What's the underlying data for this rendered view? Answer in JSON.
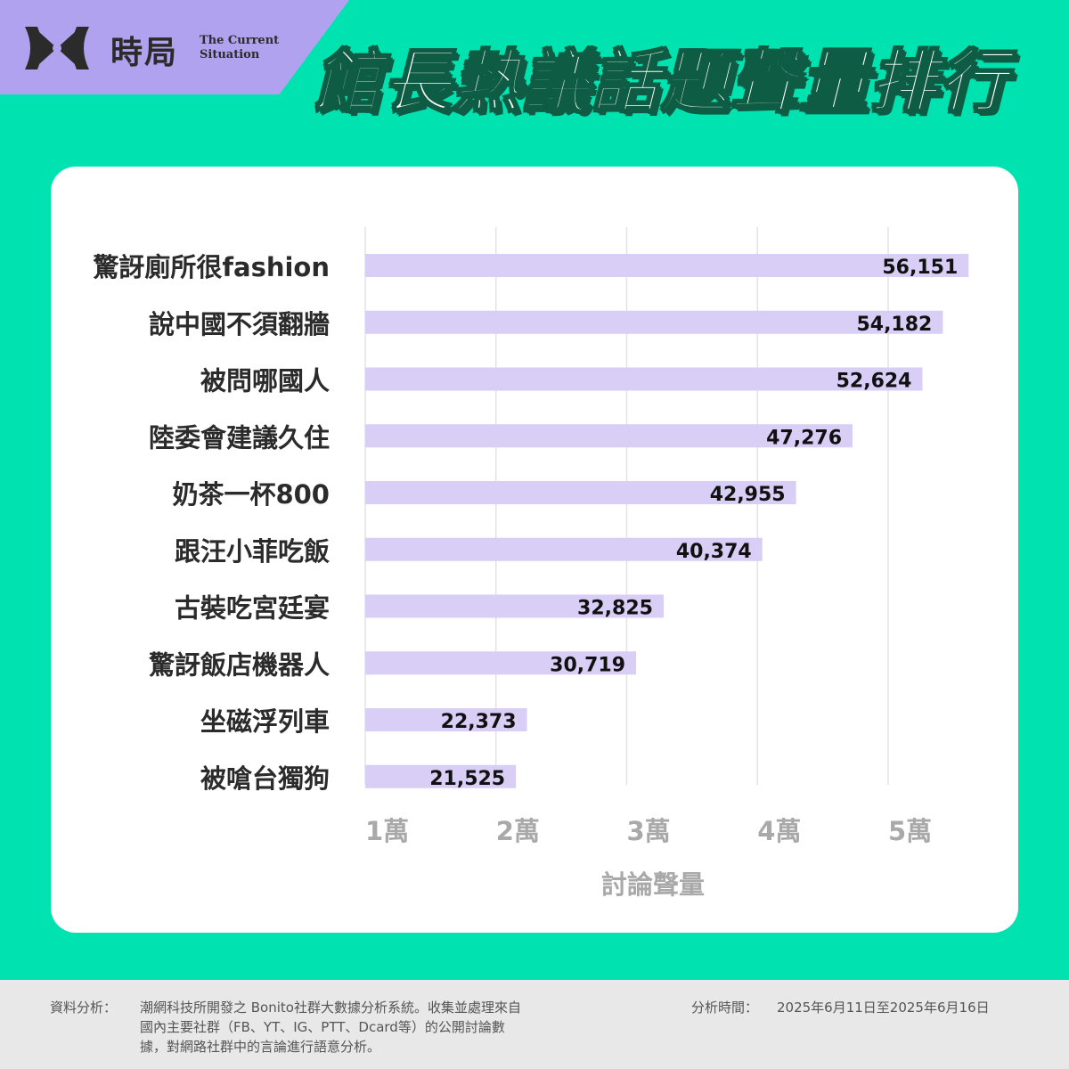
{
  "brand": {
    "name_cn": "時局",
    "name_en_line1": "The Current",
    "name_en_line2": "Situation",
    "logo_icon": "hourglass-eye-logo-icon"
  },
  "title": "館長熱議話題聲量排行",
  "colors": {
    "background": "#00e3b0",
    "brand_tab": "#b1a2ef",
    "bar": "#d8cef6",
    "title_outline": "#0f5c45"
  },
  "chart_data": {
    "type": "bar",
    "orientation": "horizontal",
    "categories": [
      "驚訝廁所很fashion",
      "說中國不須翻牆",
      "被問哪國人",
      "陸委會建議久住",
      "奶茶一杯800",
      "跟汪小菲吃飯",
      "古裝吃宮廷宴",
      "驚訝飯店機器人",
      "坐磁浮列車",
      "被嗆台獨狗"
    ],
    "values": [
      56151,
      54182,
      52624,
      47276,
      42955,
      40374,
      32825,
      30719,
      22373,
      21525
    ],
    "value_labels": [
      "56,151",
      "54,182",
      "52,624",
      "47,276",
      "42,955",
      "40,374",
      "32,825",
      "30,719",
      "22,373",
      "21,525"
    ],
    "x_ticks": [
      10000,
      20000,
      30000,
      40000,
      50000
    ],
    "x_tick_labels": [
      "1萬",
      "2萬",
      "3萬",
      "4萬",
      "5萬"
    ],
    "xlim": [
      10000,
      57000
    ],
    "xlabel": "討論聲量",
    "grid": true
  },
  "footer": {
    "source_label": "資料分析：",
    "source_lines": [
      "潮網科技所開發之 Bonito社群大數據分析系統。收集並處理來自",
      "國內主要社群（FB、YT、IG、PTT、Dcard等）的公開討論數",
      "據，對網路社群中的言論進行語意分析。"
    ],
    "period_label": "分析時間：",
    "period_value": "2025年6月11日至2025年6月16日"
  }
}
